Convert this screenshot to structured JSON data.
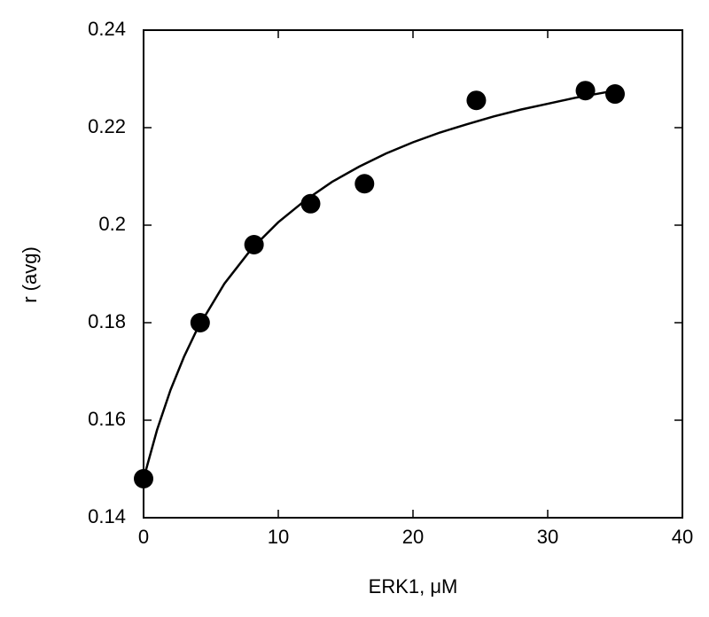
{
  "chart_data": {
    "type": "scatter",
    "x_label": "ERK1, μM",
    "y_label": "r (avg)",
    "xlim": [
      0,
      40
    ],
    "xticks": [
      0,
      10,
      20,
      30,
      40
    ],
    "ylim": [
      0.14,
      0.24
    ],
    "yticks": [
      0.14,
      0.16,
      0.18,
      0.2,
      0.22,
      0.24
    ],
    "grid": false,
    "series": [
      {
        "color": "#000000",
        "style": "marker",
        "x": [
          0,
          4.2,
          8.2,
          12.4,
          16.4,
          24.7,
          32.8,
          35
        ],
        "values": [
          0.148,
          0.18,
          0.196,
          0.2044,
          0.2085,
          0.2256,
          0.2276,
          0.2269
        ]
      },
      {
        "color": "#000000",
        "style": "line",
        "x": [
          0,
          1,
          2,
          3,
          4,
          6,
          8,
          10,
          12,
          14,
          16,
          18,
          20,
          22,
          24,
          26,
          28,
          30,
          32,
          34,
          35
        ],
        "values": [
          0.148,
          0.158,
          0.1662,
          0.173,
          0.1788,
          0.188,
          0.1951,
          0.2006,
          0.2051,
          0.2089,
          0.212,
          0.2147,
          0.217,
          0.219,
          0.2207,
          0.2223,
          0.2237,
          0.2249,
          0.2261,
          0.2271,
          0.2276
        ]
      }
    ]
  }
}
